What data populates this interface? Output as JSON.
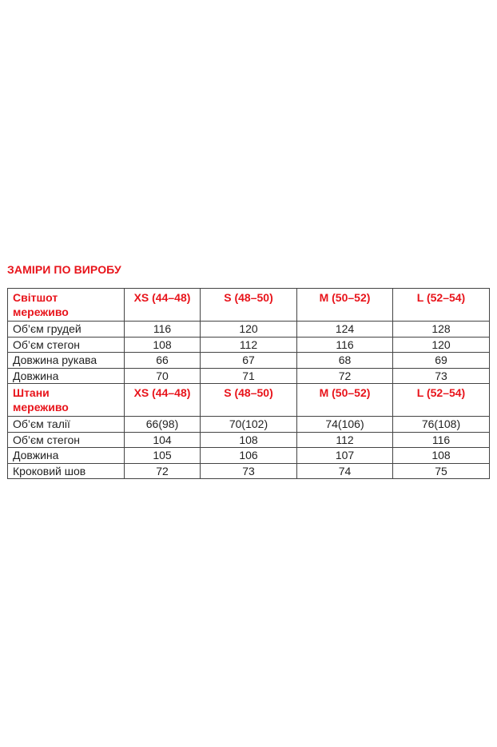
{
  "title": "ЗАМІРИ ПО ВИРОБУ",
  "accent_color": "#e8141b",
  "sections": [
    {
      "name_line1": "Світшот",
      "name_line2": "мереживо",
      "sizes": [
        "XS (44–48)",
        "S (48–50)",
        "M (50–52)",
        "L (52–54)"
      ],
      "rows": [
        {
          "label": "Об’єм грудей",
          "values": [
            "116",
            "120",
            "124",
            "128"
          ]
        },
        {
          "label": "Об’єм стегон",
          "values": [
            "108",
            "112",
            "116",
            "120"
          ]
        },
        {
          "label": "Довжина рукава",
          "values": [
            "66",
            "67",
            "68",
            "69"
          ]
        },
        {
          "label": "Довжина",
          "values": [
            "70",
            "71",
            "72",
            "73"
          ]
        }
      ]
    },
    {
      "name_line1": "Штани",
      "name_line2": "мереживо",
      "sizes": [
        "XS (44–48)",
        "S (48–50)",
        "M (50–52)",
        "L (52–54)"
      ],
      "rows": [
        {
          "label": "Об’єм талії",
          "values": [
            "66(98)",
            "70(102)",
            "74(106)",
            "76(108)"
          ]
        },
        {
          "label": "Об’єм стегон",
          "values": [
            "104",
            "108",
            "112",
            "116"
          ]
        },
        {
          "label": "Довжина",
          "values": [
            "105",
            "106",
            "107",
            "108"
          ]
        },
        {
          "label": "Кроковий шов",
          "values": [
            "72",
            "73",
            "74",
            "75"
          ]
        }
      ]
    }
  ]
}
